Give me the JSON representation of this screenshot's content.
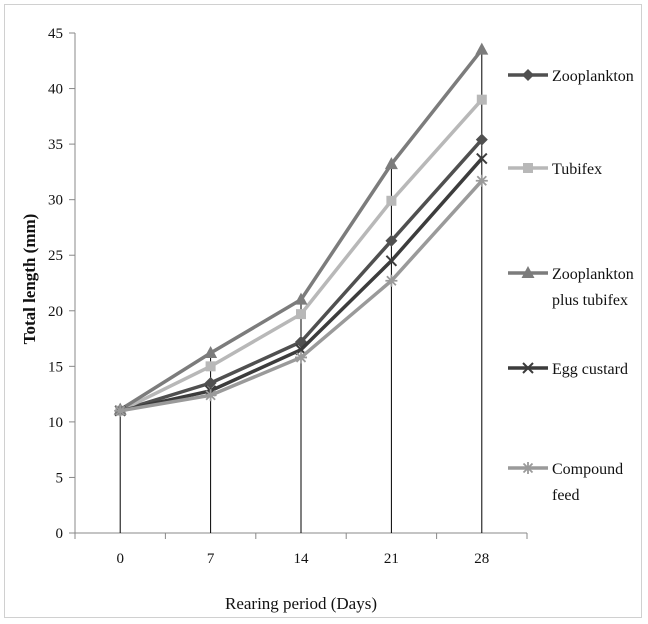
{
  "chart_data": {
    "type": "line",
    "title": "",
    "xlabel": "Rearing period (Days)",
    "ylabel": "Total length  (mm)",
    "x": [
      "0",
      "7",
      "14",
      "21",
      "28"
    ],
    "ylim": [
      0,
      45
    ],
    "yticks": [
      "0",
      "5",
      "10",
      "15",
      "20",
      "25",
      "30",
      "35",
      "40",
      "45"
    ],
    "grid": false,
    "drop_lines": true,
    "legend_position": "right",
    "series": [
      {
        "name": "Zooplankton",
        "legend_lines": [
          "Zooplankton"
        ],
        "marker": "diamond",
        "color": "#505050",
        "values": [
          11.0,
          13.5,
          17.2,
          26.3,
          35.4
        ]
      },
      {
        "name": "Tubifex",
        "legend_lines": [
          "Tubifex"
        ],
        "marker": "square",
        "color": "#b8b8b8",
        "values": [
          11.0,
          15.0,
          19.7,
          29.9,
          39.0
        ]
      },
      {
        "name": "Zooplankton plus tubifex",
        "legend_lines": [
          "Zooplankton",
          "plus tubifex"
        ],
        "marker": "triangle",
        "color": "#7c7c7c",
        "values": [
          11.1,
          16.2,
          21.0,
          33.2,
          43.5
        ]
      },
      {
        "name": "Egg custard",
        "legend_lines": [
          "Egg custard"
        ],
        "marker": "x",
        "color": "#3c3c3c",
        "values": [
          11.0,
          12.8,
          16.5,
          24.5,
          33.7
        ]
      },
      {
        "name": "Compound feed",
        "legend_lines": [
          "Compound",
          "feed"
        ],
        "marker": "star",
        "color": "#9a9a9a",
        "values": [
          11.0,
          12.4,
          15.8,
          22.7,
          31.7
        ]
      }
    ]
  }
}
